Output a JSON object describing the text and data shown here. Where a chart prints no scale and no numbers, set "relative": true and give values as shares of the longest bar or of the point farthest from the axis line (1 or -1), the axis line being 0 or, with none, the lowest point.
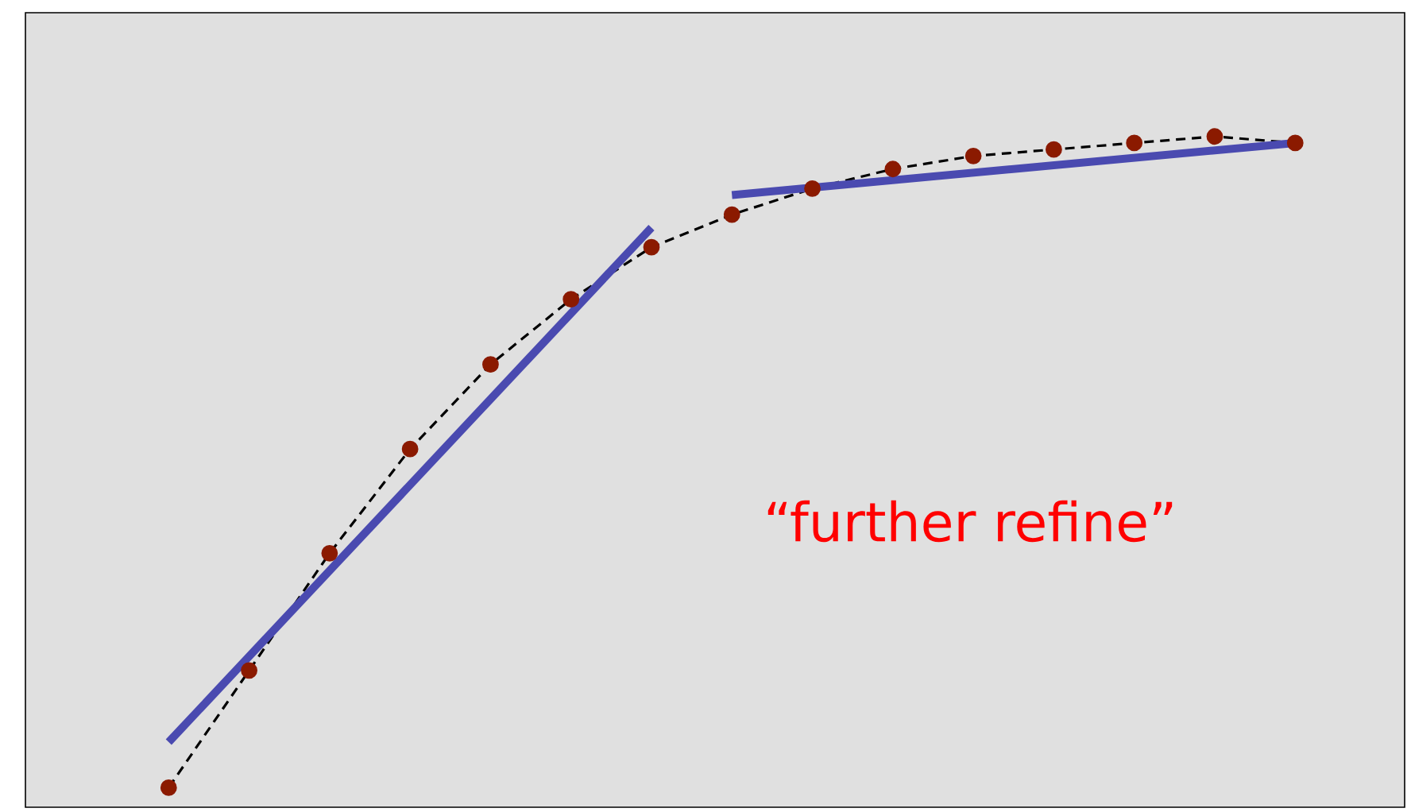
{
  "chart_data": {
    "type": "line",
    "relative": true,
    "categories": [
      null,
      null,
      null,
      null,
      null,
      null,
      null,
      null,
      null,
      null,
      null,
      null,
      null,
      null,
      null
    ],
    "series": [
      {
        "color": "#000000",
        "marker": "circle",
        "line_style": "dashed",
        "colors": [
          "#8b1a00",
          "#8b1a00",
          "#8b1a00",
          "#8b1a00",
          "#8b1a00",
          "#8b1a00",
          "#8b1a00",
          "#8b1a00",
          "#8b1a00",
          "#8b1a00",
          "#8b1a00",
          "#8b1a00",
          "#8b1a00",
          "#8b1a00",
          "#8b1a00"
        ],
        "values": [
          0,
          0.18,
          0.36,
          0.52,
          0.65,
          0.75,
          0.83,
          0.88,
          0.92,
          0.95,
          0.97,
          0.98,
          0.99,
          1.0,
          0.99
        ]
      },
      {
        "type": "line",
        "color": "#4a4ab0",
        "line_style": "solid",
        "marker": "none",
        "values": [
          0.07,
          null,
          null,
          null,
          null,
          null,
          0.86,
          null,
          null,
          null,
          null,
          null,
          null,
          null,
          null
        ]
      },
      {
        "type": "line",
        "color": "#4a4ab0",
        "line_style": "solid",
        "marker": "none",
        "values": [
          null,
          null,
          null,
          null,
          null,
          null,
          null,
          0.91,
          null,
          null,
          null,
          null,
          null,
          null,
          0.99
        ]
      }
    ],
    "annotations": [
      "“further refine”"
    ]
  }
}
